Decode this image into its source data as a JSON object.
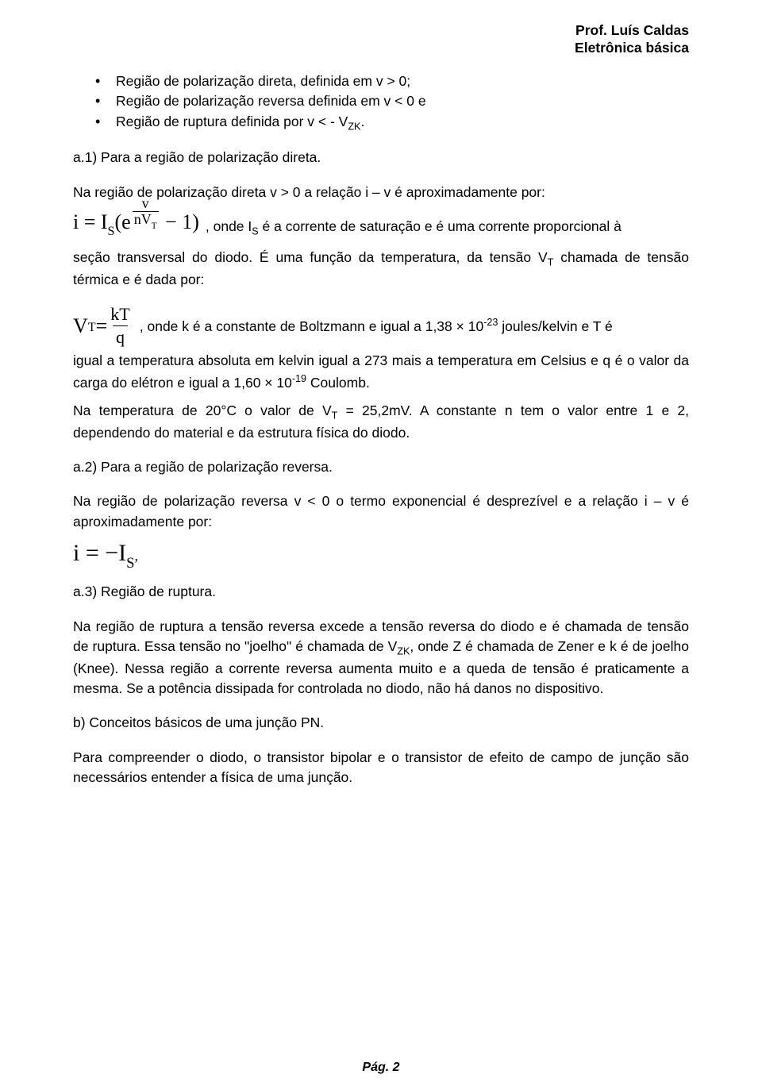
{
  "header": {
    "author": "Prof. Luís Caldas",
    "course": "Eletrônica básica"
  },
  "bullets": {
    "item1_pre": "Região de polarização direta, definida em v > 0;",
    "item2_pre": "Região de polarização reversa definida em v < 0 e",
    "item3_pre": "Região de ruptura definida por v < - V",
    "item3_sub": "ZK",
    "item3_post": "."
  },
  "a1_title": "a.1) Para a região de polarização direta.",
  "p_direta_intro": "Na região de polarização direta v > 0 a relação i – v é aproximadamente por:",
  "eq1": {
    "lhs": "i = I",
    "lhs_sub": "S",
    "open": "(e",
    "exp_num": "v",
    "exp_den_n": "nV",
    "exp_den_sub": "T",
    "close": " − 1)"
  },
  "eq1_after_1": ", onde I",
  "eq1_after_1_sub": "S",
  "eq1_after_2": " é a corrente de saturação e é uma corrente proporcional à seção transversal do diodo. É uma função da temperatura, da tensão V",
  "eq1_after_2_sub": "T",
  "eq1_after_3": " chamada de tensão térmica e é dada por:",
  "eq2": {
    "lhs_V": "V",
    "lhs_sub": "T",
    "eq": " = ",
    "num": "kT",
    "den": "q"
  },
  "eq2_after_1": ", onde k é a constante de Boltzmann e igual a 1,38 × 10",
  "eq2_after_1_sup": "-23",
  "eq2_after_2": " joules/kelvin e T é igual a temperatura absoluta em kelvin igual a 273 mais a temperatura em Celsius e q é o valor da carga do elétron e igual a 1,60 × 10",
  "eq2_after_2_sup": "-19",
  "eq2_after_3": " Coulomb.",
  "p_temp_1": "Na temperatura de 20°C o valor de V",
  "p_temp_1_sub": "T",
  "p_temp_2": " = 25,2mV. A constante n tem o valor entre 1 e 2, dependendo do material e da estrutura física do diodo.",
  "a2_title": "a.2) Para a região de polarização reversa.",
  "p_reversa": "Na região de polarização reversa v < 0 o termo exponencial é desprezível e a relação i – v é aproximadamente por:",
  "eq3": {
    "text_pre": "i = −I",
    "sub": "S",
    "comma": ","
  },
  "a3_title": "a.3) Região de ruptura.",
  "p_ruptura_1": "Na região de ruptura a tensão reversa excede a tensão reversa do diodo e é chamada de tensão de ruptura. Essa tensão no \"joelho\" é chamada de V",
  "p_ruptura_1_sub": "ZK",
  "p_ruptura_2": ", onde Z é chamada de Zener e k é de joelho (Knee). Nessa região a corrente reversa aumenta muito e a queda de tensão é praticamente a mesma. Se a potência dissipada for controlada no diodo, não há danos no dispositivo.",
  "b_title": "b) Conceitos básicos de uma junção PN.",
  "p_final": "Para compreender o diodo, o transistor bipolar e o transistor de efeito de campo de junção são necessários entender a física de uma junção.",
  "footer": {
    "label": "Pág.  2"
  }
}
